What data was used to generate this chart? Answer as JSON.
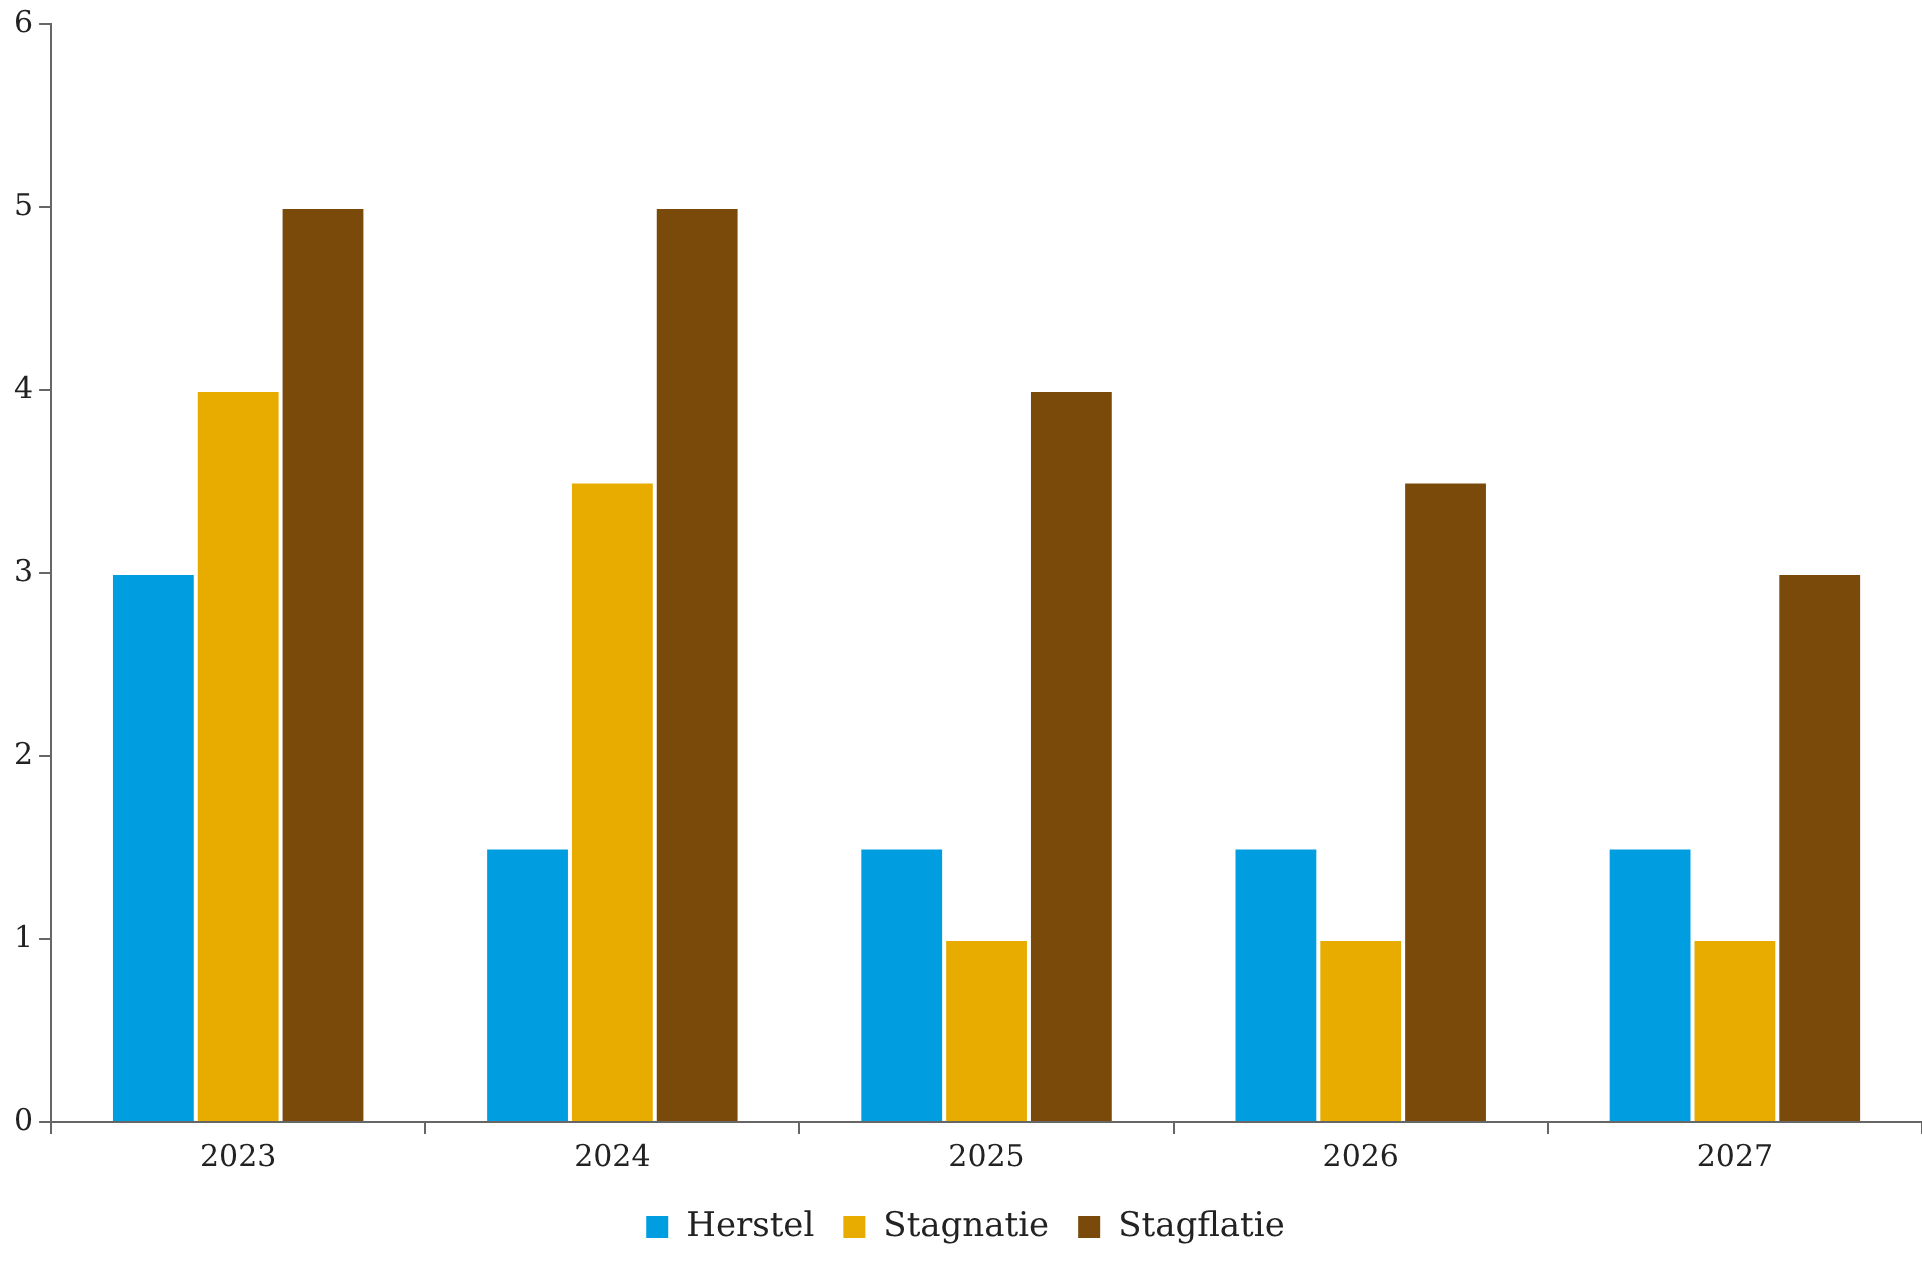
{
  "chart_data": {
    "type": "bar",
    "categories": [
      "2023",
      "2024",
      "2025",
      "2026",
      "2027"
    ],
    "series": [
      {
        "name": "Herstel",
        "color": "#009ee0",
        "values": [
          3,
          1.5,
          1.5,
          1.5,
          1.5
        ]
      },
      {
        "name": "Stagnatie",
        "color": "#e8ac00",
        "values": [
          4,
          3.5,
          1,
          1,
          1
        ]
      },
      {
        "name": "Stagflatie",
        "color": "#7a4a0a",
        "values": [
          5,
          5,
          4,
          3.5,
          3
        ]
      }
    ],
    "ylim": [
      0,
      6
    ],
    "yticks": [
      0,
      1,
      2,
      3,
      4,
      5,
      6
    ],
    "grid": false,
    "legend": "bottom"
  }
}
